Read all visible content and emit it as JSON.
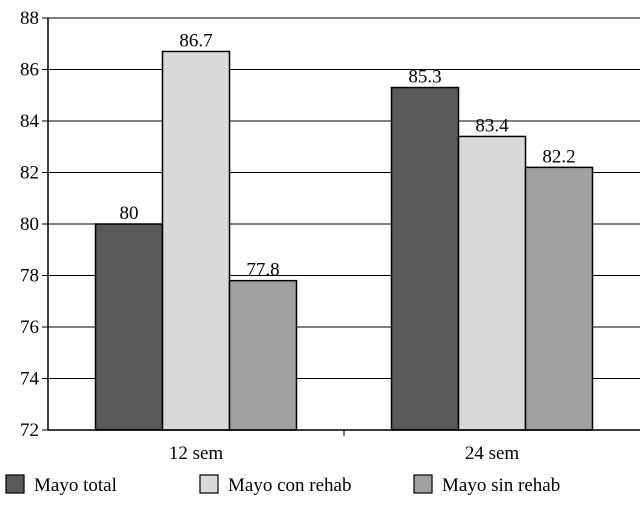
{
  "chart_data": {
    "type": "bar",
    "categories": [
      "12 sem",
      "24 sem"
    ],
    "series": [
      {
        "name": "Mayo total",
        "values": [
          80,
          85.3
        ],
        "labels": [
          "80",
          "85.3"
        ],
        "color": "#595959"
      },
      {
        "name": "Mayo con rehab",
        "values": [
          86.7,
          83.4
        ],
        "labels": [
          "86.7",
          "83.4"
        ],
        "color": "#d9d9d9"
      },
      {
        "name": "Mayo sin rehab",
        "values": [
          77.8,
          82.2
        ],
        "labels": [
          "77.8",
          "82.2"
        ],
        "color": "#a0a0a0"
      }
    ],
    "ylim": [
      72,
      88
    ],
    "yticks": [
      72,
      74,
      76,
      78,
      80,
      82,
      84,
      86,
      88
    ],
    "grid": true,
    "legend_position": "bottom"
  }
}
